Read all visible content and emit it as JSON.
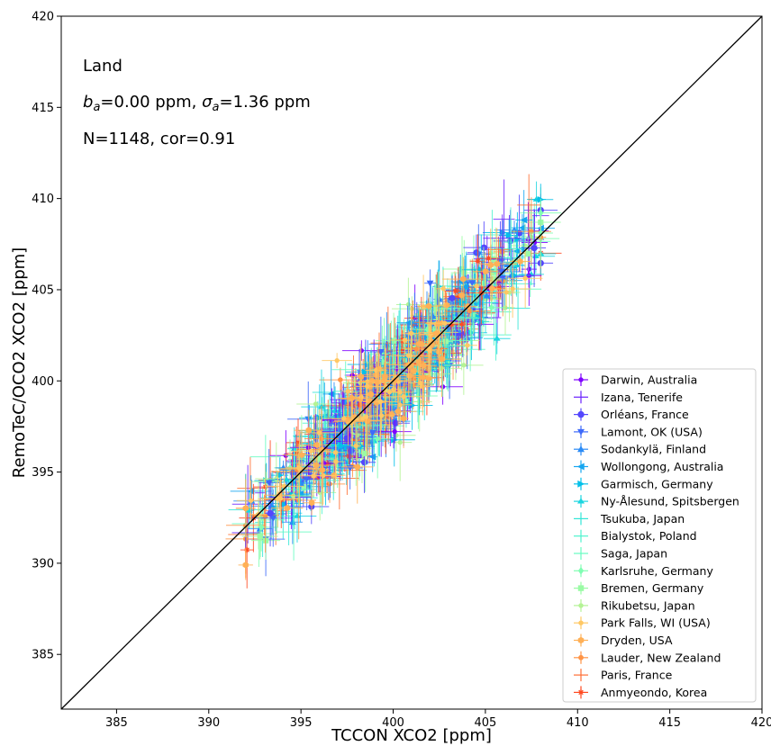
{
  "chart_data": {
    "type": "scatter",
    "xlabel": "TCCON XCO2 [ppm]",
    "ylabel": "RemoTeC/OCO2 XCO2 [ppm]",
    "xlim": [
      382,
      420
    ],
    "ylim": [
      382,
      420
    ],
    "xticks": [
      385,
      390,
      395,
      400,
      405,
      410,
      415,
      420
    ],
    "yticks": [
      385,
      390,
      395,
      400,
      405,
      410,
      415,
      420
    ],
    "grid": false,
    "legend_placement": "lower-right",
    "reference_line": "one-to-one",
    "annotations": {
      "region": "Land",
      "bias_prefix": "b",
      "bias_sub": "a",
      "bias_value": "=0.00 ppm, ",
      "sigma_prefix": "σ",
      "sigma_sub": "a",
      "sigma_value": "=1.36 ppm",
      "stats": "N=1148, cor=0.91"
    },
    "cloud": {
      "n_points": 1148,
      "x_range": [
        392,
        408
      ],
      "fit_offset": 0.0,
      "scatter_sd": 1.36,
      "correlation": 0.91
    },
    "series": [
      {
        "name": "Darwin, Australia",
        "color": "#7f00ff",
        "marker": "plus-dot"
      },
      {
        "name": "Izana, Tenerife",
        "color": "#6a22fe",
        "marker": "plus"
      },
      {
        "name": "Orléans, France",
        "color": "#5447fd",
        "marker": "circle"
      },
      {
        "name": "Lamont, OK (USA)",
        "color": "#3e6afa",
        "marker": "triangle-down"
      },
      {
        "name": "Sodankylä, Finland",
        "color": "#2a8bf6",
        "marker": "triangle-up"
      },
      {
        "name": "Wollongong, Australia",
        "color": "#16a6f0",
        "marker": "tri-left"
      },
      {
        "name": "Garmisch, Germany",
        "color": "#04c0e9",
        "marker": "tri-right"
      },
      {
        "name": "Ny-Ålesund, Spitsbergen",
        "color": "#1bd6e0",
        "marker": "tri-up"
      },
      {
        "name": "Tsukuba, Japan",
        "color": "#32e6d7",
        "marker": "plus-thin"
      },
      {
        "name": "Bialystok, Poland",
        "color": "#4df3ce",
        "marker": "plus-thin"
      },
      {
        "name": "Saga, Japan",
        "color": "#66fbc1",
        "marker": "plus-thin"
      },
      {
        "name": "Karlsruhe, Germany",
        "color": "#80feb3",
        "marker": "diamond"
      },
      {
        "name": "Bremen, Germany",
        "color": "#9afba5",
        "marker": "square"
      },
      {
        "name": "Rikubetsu, Japan",
        "color": "#b4f395",
        "marker": "plus-dot"
      },
      {
        "name": "Park Falls, WI (USA)",
        "color": "#ffc864",
        "marker": "plus-dot"
      },
      {
        "name": "Dryden, USA",
        "color": "#ffb056",
        "marker": "hexagon"
      },
      {
        "name": "Lauder, New Zealand",
        "color": "#ff9446",
        "marker": "circle-small"
      },
      {
        "name": "Paris, France",
        "color": "#ff6e34",
        "marker": "plus-thin"
      },
      {
        "name": "Anmyeondo, Korea",
        "color": "#ff4a21",
        "marker": "star"
      }
    ]
  }
}
